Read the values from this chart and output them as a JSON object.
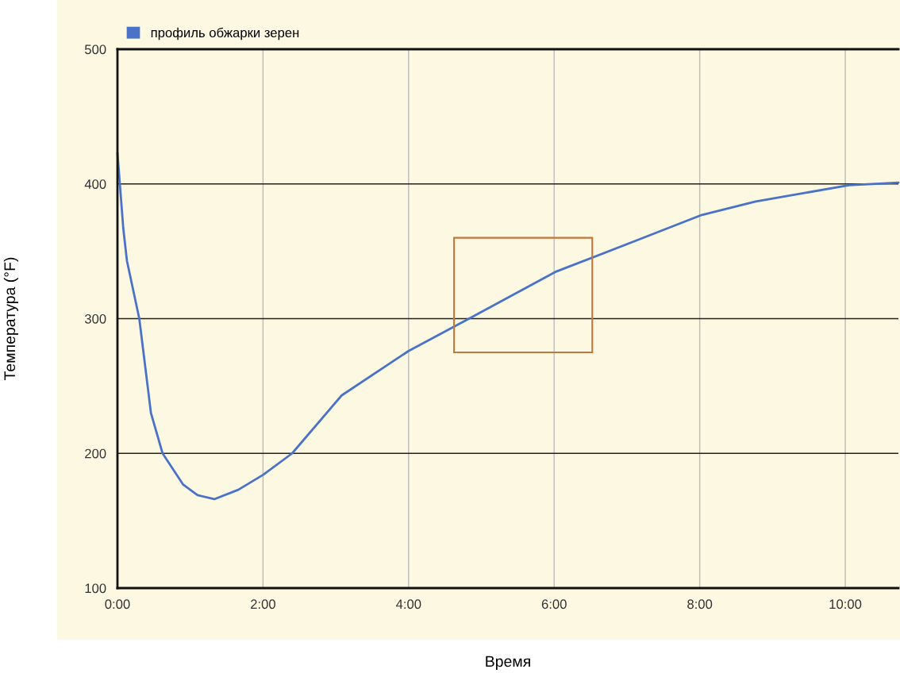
{
  "chart_data": {
    "type": "line",
    "xlabel": "Время",
    "ylabel": "Температура (°F)",
    "xlim": [
      0,
      10.73
    ],
    "ylim": [
      100,
      500
    ],
    "xticks": [
      {
        "value": 0,
        "label": "0:00"
      },
      {
        "value": 2,
        "label": "2:00"
      },
      {
        "value": 4,
        "label": "4:00"
      },
      {
        "value": 6,
        "label": "6:00"
      },
      {
        "value": 8,
        "label": "8:00"
      },
      {
        "value": 10,
        "label": "10:00"
      }
    ],
    "yticks": [
      100,
      200,
      300,
      400,
      500
    ],
    "grid": true,
    "legend": "top left",
    "series": [
      {
        "name": "профиль обжарки зерен",
        "color": "#4a72c8",
        "x": [
          0,
          0.08,
          0.13,
          0.3,
          0.46,
          0.62,
          0.9,
          1.1,
          1.33,
          1.66,
          2.0,
          2.4,
          3.08,
          4.0,
          4.83,
          6.03,
          7.13,
          8.03,
          8.77,
          10.05,
          10.73
        ],
        "values": [
          423,
          367,
          343,
          300,
          230,
          200,
          177,
          169,
          166,
          173,
          184,
          200,
          243,
          276,
          300,
          335,
          358,
          377,
          387,
          399,
          401
        ]
      }
    ]
  }
}
